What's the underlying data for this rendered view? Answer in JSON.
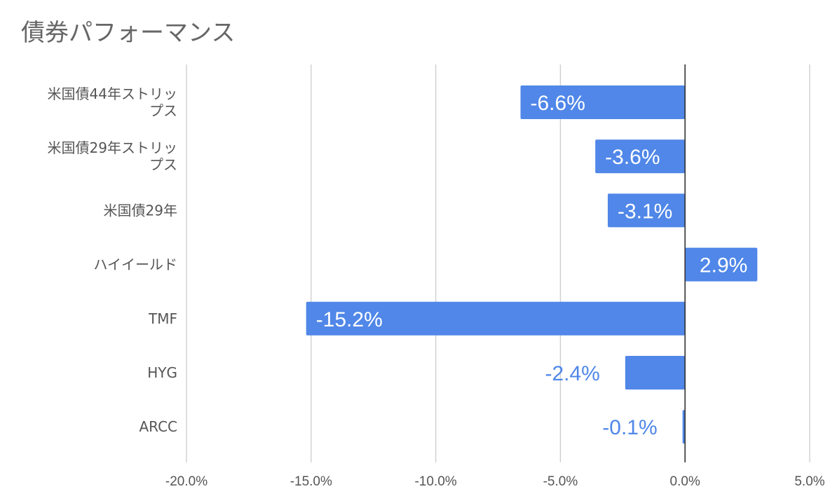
{
  "chart_data": {
    "type": "bar",
    "orientation": "horizontal",
    "title": "債券パフォーマンス",
    "categories": [
      [
        "米国債44年ストリッ",
        "プス"
      ],
      [
        "米国債29年ストリッ",
        "プス"
      ],
      [
        "米国債29年"
      ],
      [
        "ハイイールド"
      ],
      [
        "TMF"
      ],
      [
        "HYG"
      ],
      [
        "ARCC"
      ]
    ],
    "values": [
      -6.6,
      -3.6,
      -3.1,
      2.9,
      -15.2,
      -2.4,
      -0.1
    ],
    "data_labels": [
      "-6.6%",
      "-3.6%",
      "-3.1%",
      "2.9%",
      "-15.2%",
      "-2.4%",
      "-0.1%"
    ],
    "xlim": [
      -20,
      5
    ],
    "x_ticks": [
      -20,
      -15,
      -10,
      -5,
      0,
      5
    ],
    "x_tick_labels": [
      "-20.0%",
      "-15.0%",
      "-10.0%",
      "-5.0%",
      "0.0%",
      "5.0%"
    ],
    "grid": true,
    "legend": "none",
    "bar_color": "#5087e8",
    "label_inside_color": "#ffffff",
    "label_outside_color": "#5087e8"
  }
}
